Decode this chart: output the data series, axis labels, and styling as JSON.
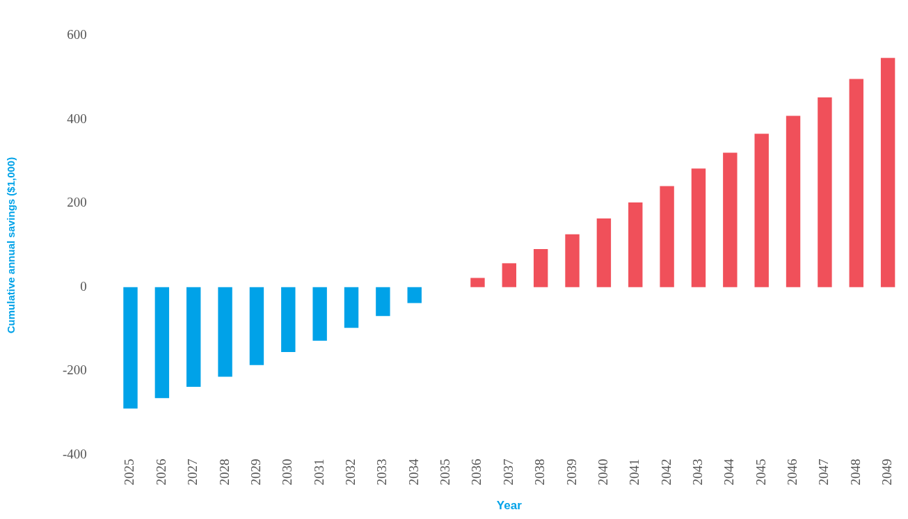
{
  "chart_data": {
    "type": "bar",
    "xlabel": "Year",
    "ylabel": "Cumulative annual savings ($1,000)",
    "categories": [
      "2025",
      "2026",
      "2027",
      "2028",
      "2029",
      "2030",
      "2031",
      "2032",
      "2033",
      "2034",
      "2035",
      "2036",
      "2037",
      "2038",
      "2039",
      "2040",
      "2041",
      "2042",
      "2043",
      "2044",
      "2045",
      "2046",
      "2047",
      "2048",
      "2049"
    ],
    "values": [
      -290,
      -265,
      -238,
      -214,
      -186,
      -155,
      -128,
      -97,
      -69,
      -38,
      0,
      22,
      57,
      91,
      126,
      164,
      202,
      241,
      283,
      321,
      366,
      409,
      453,
      497,
      547
    ],
    "colors": [
      "#00a2e8",
      "#00a2e8",
      "#00a2e8",
      "#00a2e8",
      "#00a2e8",
      "#00a2e8",
      "#00a2e8",
      "#00a2e8",
      "#00a2e8",
      "#00a2e8",
      "#f0505a",
      "#f0505a",
      "#f0505a",
      "#f0505a",
      "#f0505a",
      "#f0505a",
      "#f0505a",
      "#f0505a",
      "#f0505a",
      "#f0505a",
      "#f0505a",
      "#f0505a",
      "#f0505a",
      "#f0505a",
      "#f0505a"
    ],
    "ylim": [
      -400,
      600
    ],
    "yticks": [
      -400,
      -200,
      0,
      200,
      400,
      600
    ],
    "grid": false,
    "legend": false
  }
}
